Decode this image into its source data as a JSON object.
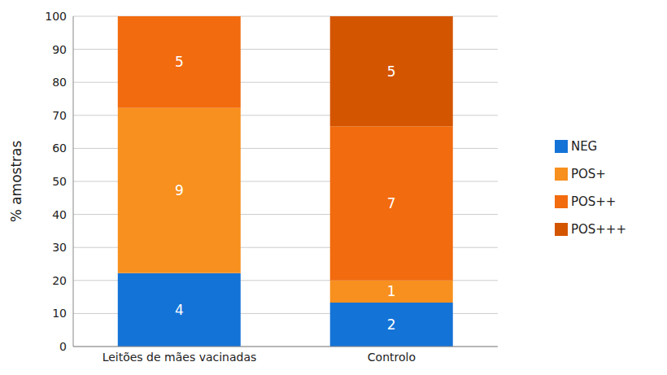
{
  "chart_data": {
    "type": "bar",
    "stacked": true,
    "y_label": "% amostras",
    "categories": [
      "Leitões de mães vacinadas",
      "Controlo"
    ],
    "series": [
      {
        "name": "NEG",
        "color": "#1473d7",
        "values": [
          22.2,
          13.3
        ],
        "counts": [
          4,
          2
        ]
      },
      {
        "name": "POS+",
        "color": "#f7901e",
        "values": [
          50,
          6.7
        ],
        "counts": [
          9,
          1
        ]
      },
      {
        "name": "POS++",
        "color": "#f26b0f",
        "values": [
          27.8,
          46.7
        ],
        "counts": [
          5,
          7
        ]
      },
      {
        "name": "POS+++",
        "color": "#d45500",
        "values": [
          null,
          33.3
        ],
        "counts": [
          null,
          5
        ]
      }
    ],
    "ylim": [
      0,
      100
    ],
    "yticks": [
      0,
      10,
      20,
      30,
      40,
      50,
      60,
      70,
      80,
      90,
      100
    ],
    "grid": true,
    "legend": "right"
  }
}
